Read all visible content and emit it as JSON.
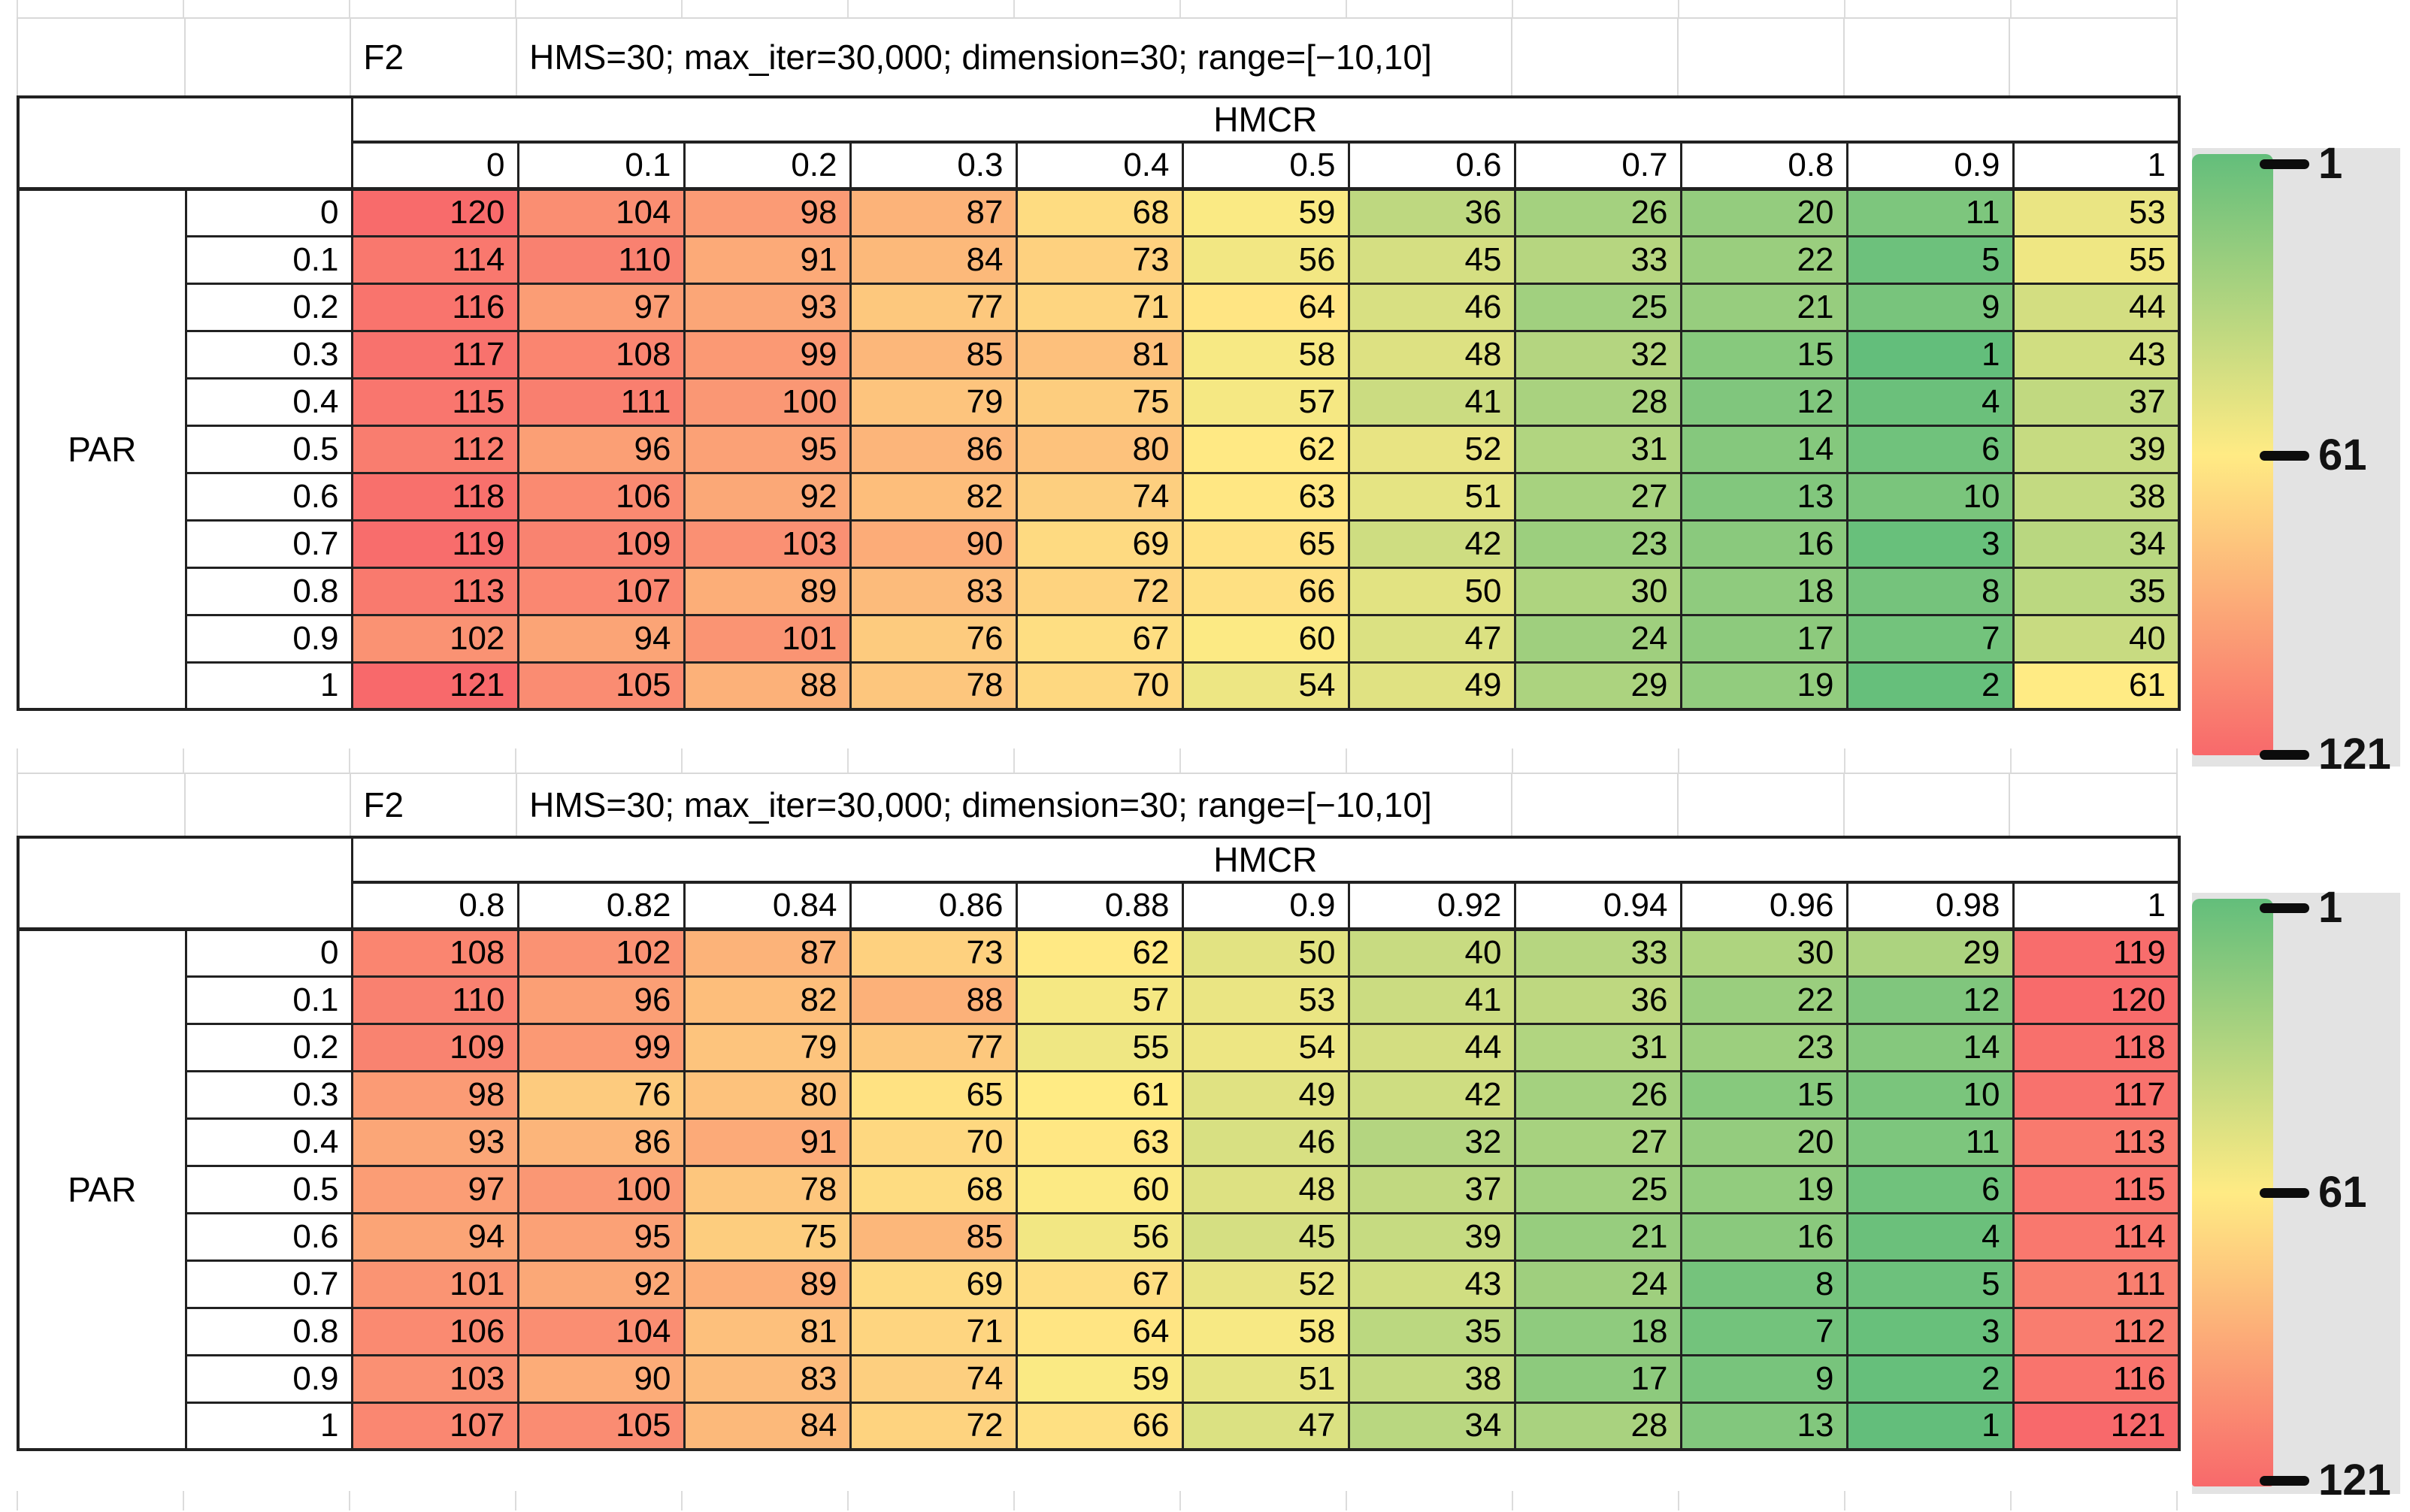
{
  "chart_data": [
    {
      "type": "heatmap",
      "function_label": "F2",
      "settings": "HMS=30; max_iter=30,000; dimension=30; range=[−10,10]",
      "x_axis": "HMCR",
      "y_axis": "PAR",
      "x_ticks": [
        "0",
        "0.1",
        "0.2",
        "0.3",
        "0.4",
        "0.5",
        "0.6",
        "0.7",
        "0.8",
        "0.9",
        "1"
      ],
      "y_ticks": [
        "0",
        "0.1",
        "0.2",
        "0.3",
        "0.4",
        "0.5",
        "0.6",
        "0.7",
        "0.8",
        "0.9",
        "1"
      ],
      "values": [
        [
          120,
          104,
          98,
          87,
          68,
          59,
          36,
          26,
          20,
          11,
          53
        ],
        [
          114,
          110,
          91,
          84,
          73,
          56,
          45,
          33,
          22,
          5,
          55
        ],
        [
          116,
          97,
          93,
          77,
          71,
          64,
          46,
          25,
          21,
          9,
          44
        ],
        [
          117,
          108,
          99,
          85,
          81,
          58,
          48,
          32,
          15,
          1,
          43
        ],
        [
          115,
          111,
          100,
          79,
          75,
          57,
          41,
          28,
          12,
          4,
          37
        ],
        [
          112,
          96,
          95,
          86,
          80,
          62,
          52,
          31,
          14,
          6,
          39
        ],
        [
          118,
          106,
          92,
          82,
          74,
          63,
          51,
          27,
          13,
          10,
          38
        ],
        [
          119,
          109,
          103,
          90,
          69,
          65,
          42,
          23,
          16,
          3,
          34
        ],
        [
          113,
          107,
          89,
          83,
          72,
          66,
          50,
          30,
          18,
          8,
          35
        ],
        [
          102,
          94,
          101,
          76,
          67,
          60,
          47,
          24,
          17,
          7,
          40
        ],
        [
          121,
          105,
          88,
          78,
          70,
          54,
          49,
          29,
          19,
          2,
          61
        ]
      ],
      "color_scale": {
        "min": 1,
        "mid": 61,
        "max": 121,
        "min_color": "#63BE7B",
        "mid_color": "#FFEB84",
        "max_color": "#F8696B"
      },
      "legend_ticks": [
        "1",
        "61",
        "121"
      ]
    },
    {
      "type": "heatmap",
      "function_label": "F2",
      "settings": "HMS=30; max_iter=30,000; dimension=30; range=[−10,10]",
      "x_axis": "HMCR",
      "y_axis": "PAR",
      "x_ticks": [
        "0.8",
        "0.82",
        "0.84",
        "0.86",
        "0.88",
        "0.9",
        "0.92",
        "0.94",
        "0.96",
        "0.98",
        "1"
      ],
      "y_ticks": [
        "0",
        "0.1",
        "0.2",
        "0.3",
        "0.4",
        "0.5",
        "0.6",
        "0.7",
        "0.8",
        "0.9",
        "1"
      ],
      "values": [
        [
          108,
          102,
          87,
          73,
          62,
          50,
          40,
          33,
          30,
          29,
          119
        ],
        [
          110,
          96,
          82,
          88,
          57,
          53,
          41,
          36,
          22,
          12,
          120
        ],
        [
          109,
          99,
          79,
          77,
          55,
          54,
          44,
          31,
          23,
          14,
          118
        ],
        [
          98,
          76,
          80,
          65,
          61,
          49,
          42,
          26,
          15,
          10,
          117
        ],
        [
          93,
          86,
          91,
          70,
          63,
          46,
          32,
          27,
          20,
          11,
          113
        ],
        [
          97,
          100,
          78,
          68,
          60,
          48,
          37,
          25,
          19,
          6,
          115
        ],
        [
          94,
          95,
          75,
          85,
          56,
          45,
          39,
          21,
          16,
          4,
          114
        ],
        [
          101,
          92,
          89,
          69,
          67,
          52,
          43,
          24,
          8,
          5,
          111
        ],
        [
          106,
          104,
          81,
          71,
          64,
          58,
          35,
          18,
          7,
          3,
          112
        ],
        [
          103,
          90,
          83,
          74,
          59,
          51,
          38,
          17,
          9,
          2,
          116
        ],
        [
          107,
          105,
          84,
          72,
          66,
          47,
          34,
          28,
          13,
          1,
          121
        ]
      ],
      "color_scale": {
        "min": 1,
        "mid": 61,
        "max": 121,
        "min_color": "#63BE7B",
        "mid_color": "#FFEB84",
        "max_color": "#F8696B"
      },
      "legend_ticks": [
        "1",
        "61",
        "121"
      ]
    }
  ]
}
